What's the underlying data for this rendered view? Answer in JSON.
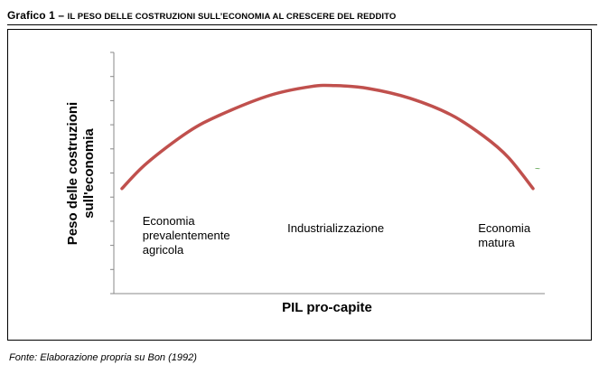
{
  "figure": {
    "title_prefix": "Grafico 1",
    "title_rest": "Il peso delle costruzioni sull’economia al crescere del reddito",
    "source": "Fonte: Elaborazione propria su Bon (1992)"
  },
  "chart_data": {
    "type": "line",
    "title": "",
    "xlabel": "PIL pro-capite",
    "ylabel": "Peso delle costruzioni sull'economia",
    "x_tick_labels": [],
    "y_tick_labels": [],
    "xlim": [
      0,
      1
    ],
    "ylim": [
      0,
      1
    ],
    "grid": false,
    "legend": "none",
    "series": [
      {
        "color": "#c0504d",
        "x": [
          0.0,
          0.06,
          0.16,
          0.24,
          0.36,
          0.46,
          0.52,
          0.6,
          0.7,
          0.8,
          0.88,
          0.94,
          1.0
        ],
        "y": [
          0.42,
          0.55,
          0.71,
          0.8,
          0.9,
          0.945,
          0.95,
          0.935,
          0.885,
          0.8,
          0.69,
          0.58,
          0.42
        ]
      }
    ],
    "annotations": [
      {
        "text": "Economia\nprevalentemente\nagricola",
        "x": 0.05,
        "y": 0.29
      },
      {
        "text": "Industrializzazione",
        "x": 0.52,
        "y": 0.25
      },
      {
        "text": "Economia\nmatura",
        "x": 0.93,
        "y": 0.25
      }
    ],
    "marker_glyph": "~"
  },
  "colors": {
    "curve": "#c0504d",
    "axis": "#888888",
    "marker": "#4a9a3a"
  }
}
